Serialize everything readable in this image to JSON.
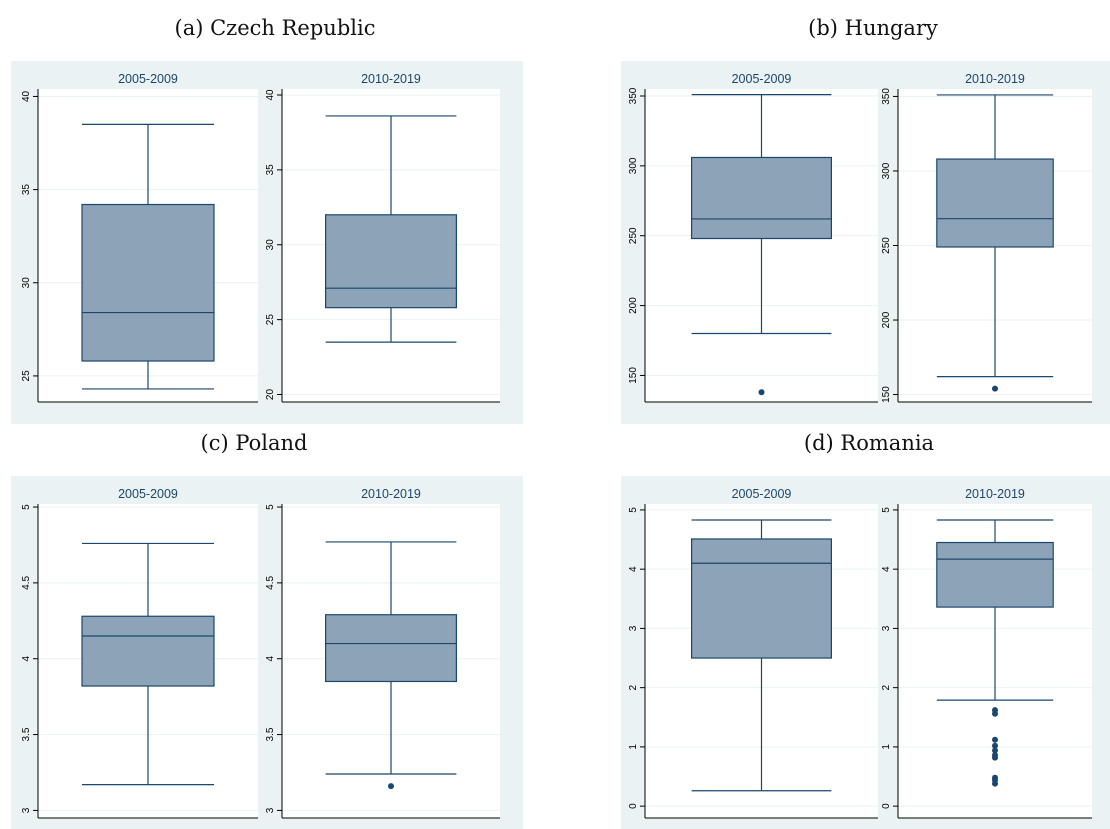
{
  "colors": {
    "panel_background": "#eaf2f3",
    "box_fill": "#8da3b7",
    "box_line": "#1a476f"
  },
  "chart_data": [
    {
      "type": "box",
      "caption": "(a) Czech Republic",
      "subplots": [
        {
          "title": "2005-2009",
          "ylim": [
            23.6,
            40.4
          ],
          "ticks": [
            25,
            30,
            35,
            40
          ],
          "box": {
            "min": 24.3,
            "q1": 25.8,
            "median": 28.4,
            "q3": 34.2,
            "max": 38.5
          },
          "outliers": []
        },
        {
          "title": "2010-2019",
          "ylim": [
            19.5,
            40.4
          ],
          "ticks": [
            20,
            25,
            30,
            35,
            40
          ],
          "box": {
            "min": 23.5,
            "q1": 25.8,
            "median": 27.1,
            "q3": 32.0,
            "max": 38.6
          },
          "outliers": []
        }
      ]
    },
    {
      "type": "box",
      "caption": "(b) Hungary",
      "subplots": [
        {
          "title": "2005-2009",
          "ylim": [
            131,
            355
          ],
          "ticks": [
            150,
            200,
            250,
            300,
            350
          ],
          "box": {
            "min": 180,
            "q1": 248,
            "median": 262,
            "q3": 306,
            "max": 351
          },
          "outliers": [
            138
          ]
        },
        {
          "title": "2010-2019",
          "ylim": [
            145,
            355
          ],
          "ticks": [
            150,
            200,
            250,
            300,
            350
          ],
          "box": {
            "min": 162,
            "q1": 249,
            "median": 268,
            "q3": 308,
            "max": 351
          },
          "outliers": [
            154
          ]
        }
      ]
    },
    {
      "type": "box",
      "caption": "(c) Poland",
      "subplots": [
        {
          "title": "2005-2009",
          "ylim": [
            2.95,
            5.02
          ],
          "ticks": [
            3,
            3.5,
            4,
            4.5,
            5
          ],
          "box": {
            "min": 3.17,
            "q1": 3.82,
            "median": 4.15,
            "q3": 4.28,
            "max": 4.76
          },
          "outliers": []
        },
        {
          "title": "2010-2019",
          "ylim": [
            2.95,
            5.02
          ],
          "ticks": [
            3,
            3.5,
            4,
            4.5,
            5
          ],
          "box": {
            "min": 3.24,
            "q1": 3.85,
            "median": 4.1,
            "q3": 4.29,
            "max": 4.77
          },
          "outliers": [
            3.16
          ]
        }
      ]
    },
    {
      "type": "box",
      "caption": "(d) Romania",
      "subplots": [
        {
          "title": "2005-2009",
          "ylim": [
            -0.2,
            5.1
          ],
          "ticks": [
            0,
            1,
            2,
            3,
            4,
            5
          ],
          "box": {
            "min": 0.26,
            "q1": 2.5,
            "median": 4.1,
            "q3": 4.51,
            "max": 4.83
          },
          "outliers": []
        },
        {
          "title": "2010-2019",
          "ylim": [
            -0.2,
            5.1
          ],
          "ticks": [
            0,
            1,
            2,
            3,
            4,
            5
          ],
          "box": {
            "min": 1.79,
            "q1": 3.36,
            "median": 4.17,
            "q3": 4.45,
            "max": 4.83
          },
          "outliers": [
            1.56,
            1.62,
            1.12,
            1.02,
            0.94,
            0.86,
            0.82,
            0.48,
            0.44,
            0.38
          ]
        }
      ]
    }
  ]
}
